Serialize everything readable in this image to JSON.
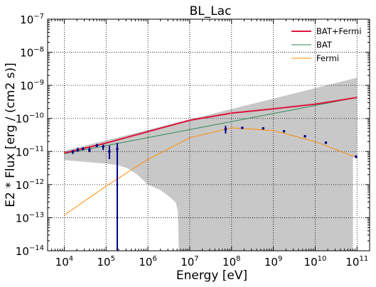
{
  "chart_data": {
    "type": "line",
    "title": "BL_Lac",
    "xlabel": "Energy [eV]",
    "ylabel": "E2 * Flux [erg / (cm2 s)]",
    "x_scale": "log",
    "y_scale": "log",
    "xlim": [
      4000,
      200000000000
    ],
    "ylim": [
      1e-14,
      1e-07
    ],
    "grid": true,
    "legend_position": "top-right",
    "x_ticks": [
      {
        "base": "10",
        "exp": "4",
        "value": 10000
      },
      {
        "base": "10",
        "exp": "5",
        "value": 100000
      },
      {
        "base": "10",
        "exp": "6",
        "value": 1000000
      },
      {
        "base": "10",
        "exp": "7",
        "value": 10000000
      },
      {
        "base": "10",
        "exp": "8",
        "value": 100000000
      },
      {
        "base": "10",
        "exp": "9",
        "value": 1000000000
      },
      {
        "base": "10",
        "exp": "10",
        "value": 10000000000
      },
      {
        "base": "10",
        "exp": "11",
        "value": 100000000000
      }
    ],
    "y_ticks": [
      {
        "base": "10",
        "exp": "−14",
        "value": 1e-14
      },
      {
        "base": "10",
        "exp": "−13",
        "value": 1e-13
      },
      {
        "base": "10",
        "exp": "−12",
        "value": 1e-12
      },
      {
        "base": "10",
        "exp": "−11",
        "value": 1e-11
      },
      {
        "base": "10",
        "exp": "−10",
        "value": 1e-10
      },
      {
        "base": "10",
        "exp": "−9",
        "value": 1e-09
      },
      {
        "base": "10",
        "exp": "−8",
        "value": 1e-08
      },
      {
        "base": "10",
        "exp": "−7",
        "value": 1e-07
      }
    ],
    "series": [
      {
        "name": "BAT+Fermi",
        "color": "#dc143c",
        "kind": "line",
        "x": [
          10000,
          100000,
          1000000,
          10000000,
          100000000,
          1000000000,
          10000000000,
          100000000000
        ],
        "y": [
          9e-12,
          1.8e-11,
          4e-11,
          8.8e-11,
          1.45e-10,
          1.95e-10,
          2.7e-10,
          4.3e-10
        ]
      },
      {
        "name": "BAT",
        "color": "#2e8b57",
        "kind": "line",
        "x": [
          10000,
          100000000000
        ],
        "y": [
          8.6e-12,
          4.3e-10
        ]
      },
      {
        "name": "Fermi",
        "color": "#ff8c00",
        "kind": "line",
        "x": [
          10000,
          100000,
          1000000,
          10000000,
          100000000,
          1000000000,
          10000000000,
          100000000000
        ],
        "y": [
          1.2e-13,
          9e-13,
          5.8e-12,
          2.6e-11,
          5.2e-11,
          4.3e-11,
          2e-11,
          6.5e-12
        ]
      }
    ],
    "uncertainty_band": {
      "color": "#c8c8c8",
      "x_upper": [
        10000,
        100000000000
      ],
      "y_upper": [
        1.05e-11,
        1.7e-09
      ],
      "x_lower": [
        10000,
        100000,
        200000,
        330000,
        560000,
        1000000,
        2000000,
        3500000,
        4700000,
        5200000,
        5500000,
        80000000000,
        80000000000,
        100000000000
      ],
      "y_lower": [
        5.5e-12,
        4.3e-12,
        3.8e-12,
        3.1e-12,
        2e-12,
        1e-12,
        6.8e-13,
        4e-13,
        2.8e-13,
        1.5e-13,
        1e-14,
        1e-14,
        6.6e-12,
        7.5e-12
      ]
    },
    "data_points": {
      "color": "#00008b",
      "points": [
        {
          "x": 16000,
          "y": 9.8e-12,
          "ylo": 8.4e-12,
          "yhi": 1.1e-11
        },
        {
          "x": 21000,
          "y": 1.1e-11,
          "ylo": 9.8e-12,
          "yhi": 1.3e-11
        },
        {
          "x": 28000,
          "y": 1.2e-11,
          "ylo": 1.1e-11,
          "yhi": 1.35e-11
        },
        {
          "x": 40000,
          "y": 1.1e-11,
          "ylo": 9.6e-12,
          "yhi": 1.3e-11
        },
        {
          "x": 60000,
          "y": 1.5e-11,
          "ylo": 1.4e-11,
          "yhi": 1.7e-11
        },
        {
          "x": 85000,
          "y": 1.4e-11,
          "ylo": 1.1e-11,
          "yhi": 1.6e-11
        },
        {
          "x": 120000,
          "y": 1e-11,
          "ylo": 5.9e-12,
          "yhi": 1.5e-11
        },
        {
          "x": 185000,
          "y": 1.2e-11,
          "ylo": 1e-14,
          "yhi": 1.8e-11
        },
        {
          "x": 72000000,
          "y": 4.7e-11,
          "ylo": 3.5e-11,
          "yhi": 6e-11
        },
        {
          "x": 180000000,
          "y": 5.2e-11,
          "ylo": 5e-11,
          "yhi": 5.4e-11
        },
        {
          "x": 570000000,
          "y": 5e-11,
          "ylo": 4.8e-11,
          "yhi": 5.2e-11
        },
        {
          "x": 1800000000,
          "y": 4.1e-11,
          "ylo": 3.9e-11,
          "yhi": 4.3e-11
        },
        {
          "x": 5700000000,
          "y": 2.9e-11,
          "ylo": 2.7e-11,
          "yhi": 3.1e-11
        },
        {
          "x": 18000000000,
          "y": 1.85e-11,
          "ylo": 1.7e-11,
          "yhi": 2e-11
        },
        {
          "x": 95000000000,
          "y": 7e-12,
          "ylo": 6.3e-12,
          "yhi": 7.7e-12
        }
      ]
    }
  }
}
